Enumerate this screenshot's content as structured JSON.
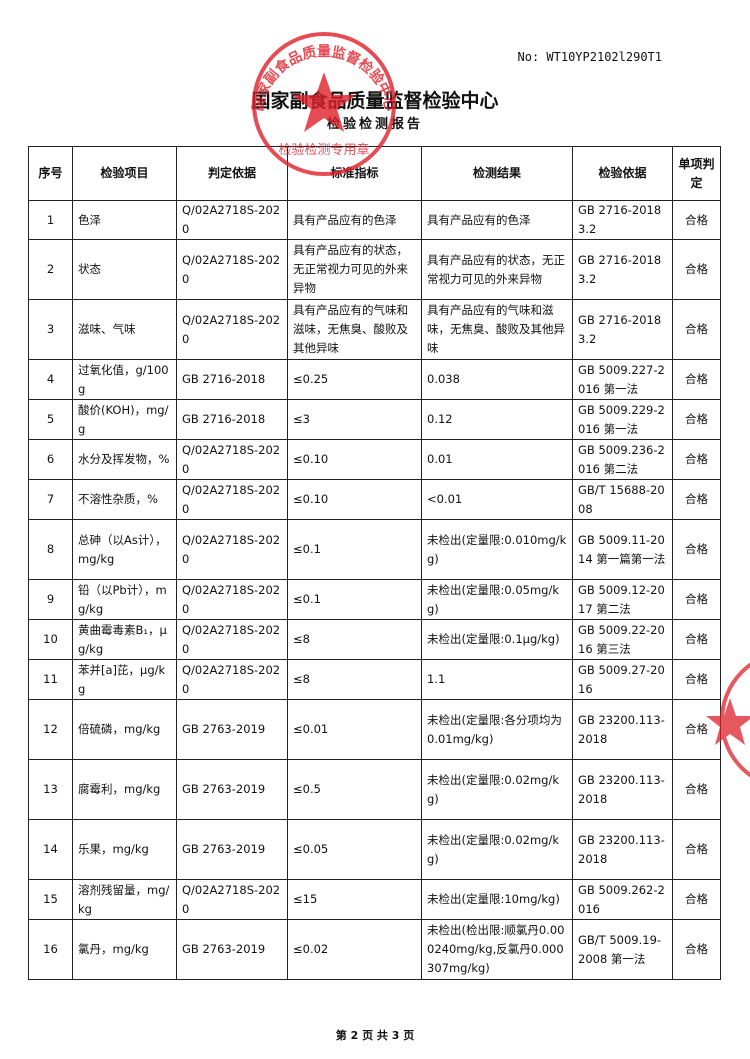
{
  "header": {
    "number": "No: WT10YP2102l290T1",
    "title": "国家副食品质量监督检验中心",
    "subtitle": "检验检测报告"
  },
  "stamp": {
    "ring": "国家副食品质量监督检验中心",
    "label": "检验检测专用章"
  },
  "table": {
    "columns": [
      "序号",
      "检验项目",
      "判定依据",
      "标准指标",
      "检测结果",
      "检验依据",
      "单项判定"
    ],
    "rows": [
      [
        "1",
        "色泽",
        "Q/02A2718S-2020",
        "具有产品应有的色泽",
        "具有产品应有的色泽",
        "GB 2716-2018 3.2",
        "合格"
      ],
      [
        "2",
        "状态",
        "Q/02A2718S-2020",
        "具有产品应有的状态，无正常视力可见的外来异物",
        "具有产品应有的状态，无正常视力可见的外来异物",
        "GB 2716-2018 3.2",
        "合格"
      ],
      [
        "3",
        "滋味、气味",
        "Q/02A2718S-2020",
        "具有产品应有的气味和滋味，无焦臭、酸败及其他异味",
        "具有产品应有的气味和滋味，无焦臭、酸败及其他异味",
        "GB 2716-2018 3.2",
        "合格"
      ],
      [
        "4",
        "过氧化值，g/100g",
        "GB 2716-2018",
        "≤0.25",
        "0.038",
        "GB 5009.227-2016 第一法",
        "合格"
      ],
      [
        "5",
        "酸价(KOH)，mg/g",
        "GB 2716-2018",
        "≤3",
        "0.12",
        "GB 5009.229-2016 第一法",
        "合格"
      ],
      [
        "6",
        "水分及挥发物，%",
        "Q/02A2718S-2020",
        "≤0.10",
        "0.01",
        "GB 5009.236-2016 第二法",
        "合格"
      ],
      [
        "7",
        "不溶性杂质，%",
        "Q/02A2718S-2020",
        "≤0.10",
        "<0.01",
        "GB/T 15688-2008",
        "合格"
      ],
      [
        "8",
        "总砷（以As计），mg/kg",
        "Q/02A2718S-2020",
        "≤0.1",
        "未检出(定量限:0.010mg/kg)",
        "GB 5009.11-2014 第一篇第一法",
        "合格"
      ],
      [
        "9",
        "铅（以Pb计），mg/kg",
        "Q/02A2718S-2020",
        "≤0.1",
        "未检出(定量限:0.05mg/kg)",
        "GB 5009.12-2017 第二法",
        "合格"
      ],
      [
        "10",
        "黄曲霉毒素B₁，μg/kg",
        "Q/02A2718S-2020",
        "≤8",
        "未检出(定量限:0.1μg/kg)",
        "GB 5009.22-2016 第三法",
        "合格"
      ],
      [
        "11",
        "苯并[a]芘，μg/kg",
        "Q/02A2718S-2020",
        "≤8",
        "1.1",
        "GB 5009.27-2016",
        "合格"
      ],
      [
        "12",
        "倍硫磷，mg/kg",
        "GB 2763-2019",
        "≤0.01",
        "未检出(定量限:各分项均为0.01mg/kg)",
        "GB 23200.113-2018",
        "合格"
      ],
      [
        "13",
        "腐霉利，mg/kg",
        "GB 2763-2019",
        "≤0.5",
        "未检出(定量限:0.02mg/kg)",
        "GB 23200.113-2018",
        "合格"
      ],
      [
        "14",
        "乐果，mg/kg",
        "GB 2763-2019",
        "≤0.05",
        "未检出(定量限:0.02mg/kg)",
        "GB 23200.113-2018",
        "合格"
      ],
      [
        "15",
        "溶剂残留量，mg/kg",
        "Q/02A2718S-2020",
        "≤15",
        "未检出(定量限:10mg/kg)",
        "GB 5009.262-2016",
        "合格"
      ],
      [
        "16",
        "氯丹，mg/kg",
        "GB 2763-2019",
        "≤0.02",
        "未检出(检出限:顺氯丹0.000240mg/kg,反氯丹0.000307mg/kg)",
        "GB/T 5009.19-2008 第一法",
        "合格"
      ]
    ]
  },
  "footer": "第 2 页 共 3 页"
}
